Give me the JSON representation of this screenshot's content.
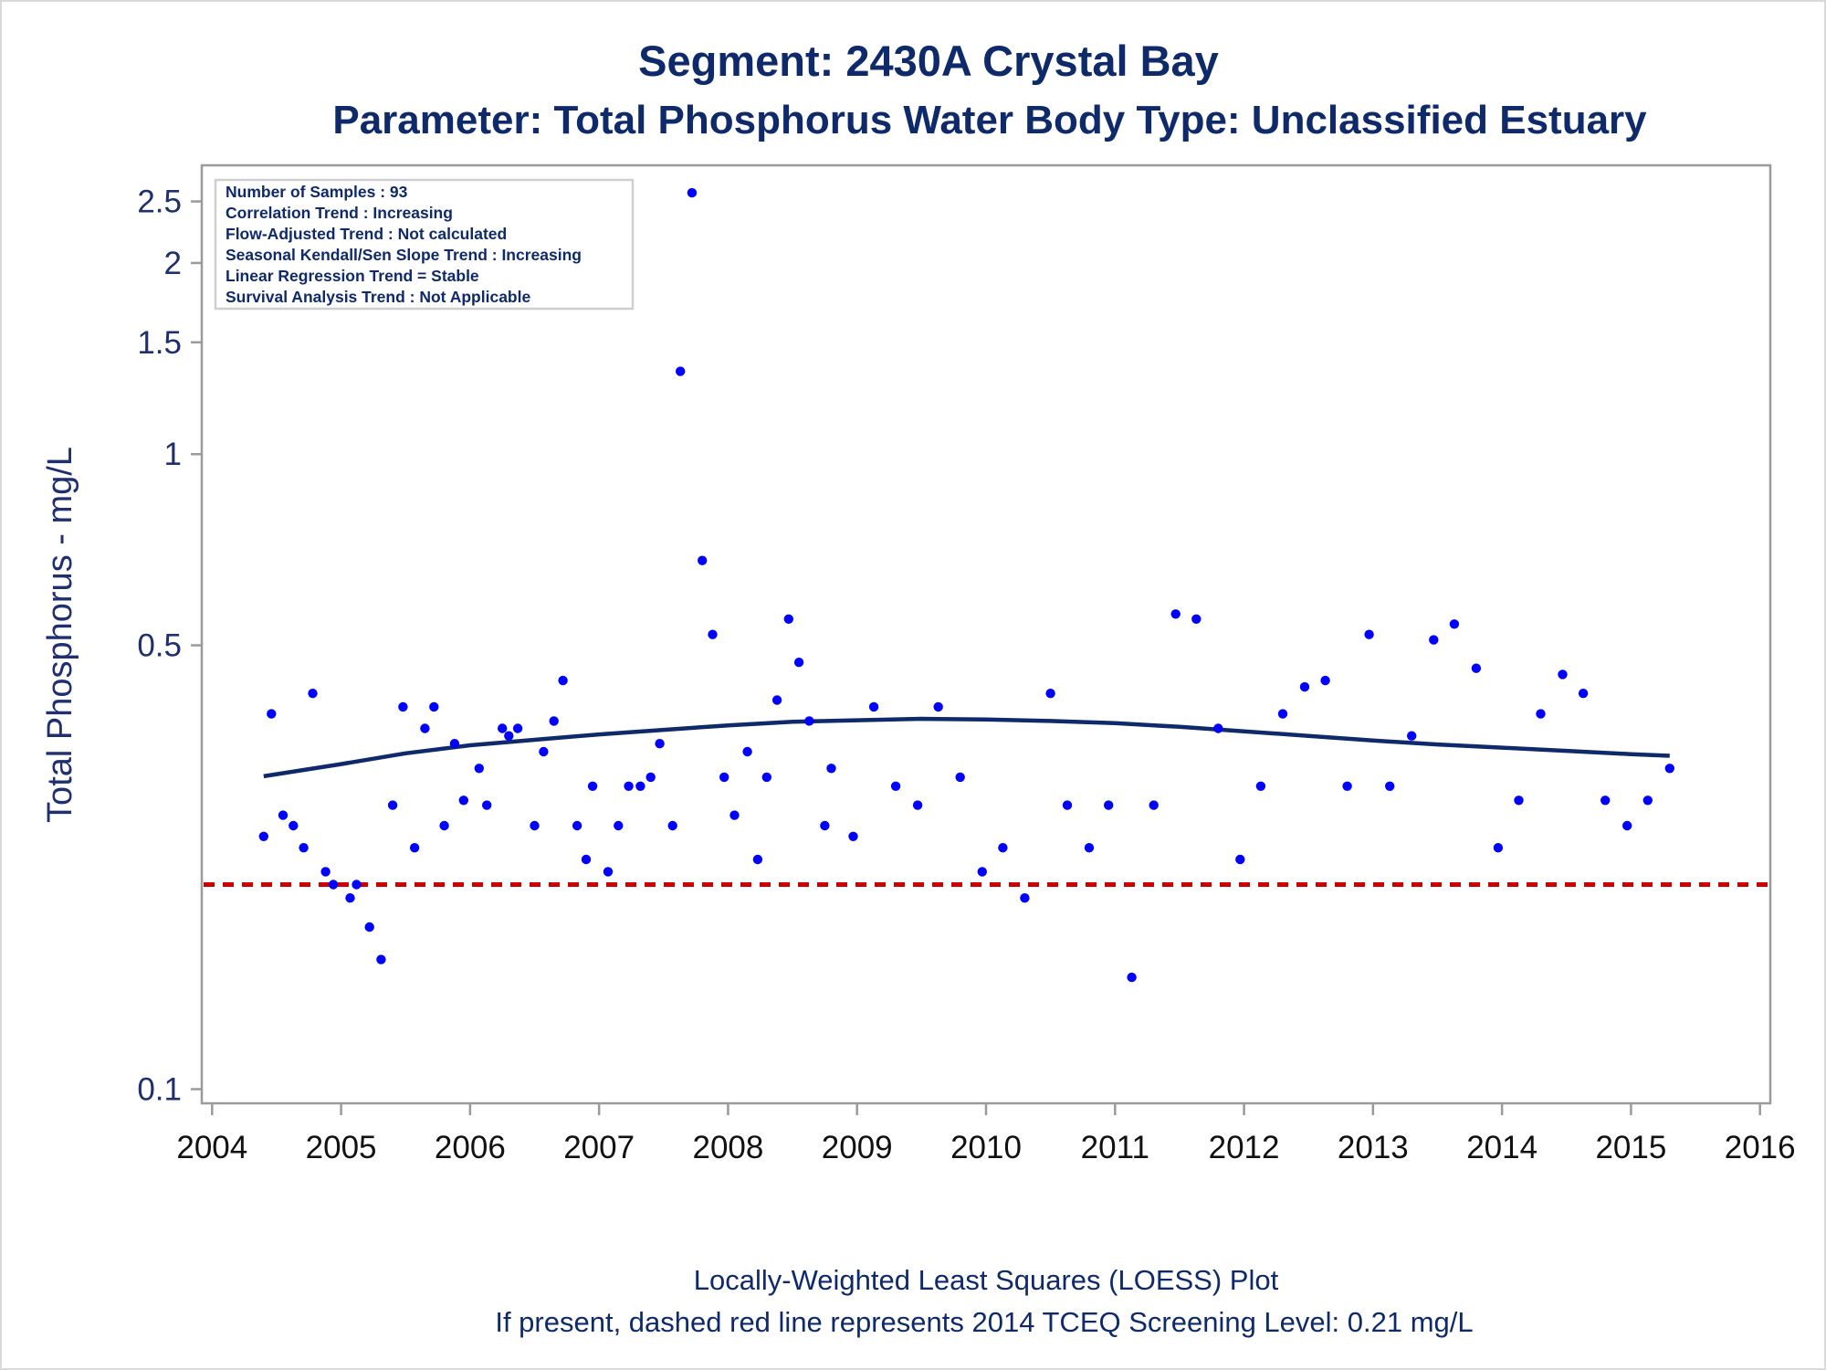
{
  "chart_data": {
    "type": "scatter",
    "title": "Segment: 2430A  Crystal Bay",
    "subtitle": "Parameter: Total Phosphorus   Water Body Type: Unclassified Estuary",
    "ylabel": "Total Phosphorus - mg/L",
    "xlabel": "",
    "y_scale": "log",
    "ylim": [
      0.095,
      2.85
    ],
    "xlim": [
      2003.92,
      2016.08
    ],
    "y_ticks": [
      0.1,
      0.5,
      1,
      1.5,
      2,
      2.5
    ],
    "y_tick_labels": [
      "0.1",
      "0.5",
      "1",
      "1.5",
      "2",
      "2.5"
    ],
    "x_ticks": [
      2004,
      2005,
      2006,
      2007,
      2008,
      2009,
      2010,
      2011,
      2012,
      2013,
      2014,
      2015,
      2016
    ],
    "x_tick_labels": [
      "2004",
      "2005",
      "2006",
      "2007",
      "2008",
      "2009",
      "2010",
      "2011",
      "2012",
      "2013",
      "2014",
      "2015",
      "2016"
    ],
    "grid": false,
    "legend": "none",
    "colors": {
      "points": "#0000ff",
      "loess": "#0f2a6b",
      "screening": "#cc0000",
      "text": "#0f2a6b"
    },
    "stats_box": [
      "Number of Samples : 93",
      "Correlation Trend : Increasing",
      "Flow-Adjusted Trend : Not calculated",
      "Seasonal Kendall/Sen Slope Trend : Increasing",
      "Linear Regression Trend = Stable",
      "Survival Analysis Trend : Not Applicable"
    ],
    "screening_level": 0.21,
    "points": [
      {
        "x": 2004.4,
        "y": 0.25
      },
      {
        "x": 2004.46,
        "y": 0.39
      },
      {
        "x": 2004.55,
        "y": 0.27
      },
      {
        "x": 2004.63,
        "y": 0.26
      },
      {
        "x": 2004.71,
        "y": 0.24
      },
      {
        "x": 2004.78,
        "y": 0.42
      },
      {
        "x": 2004.88,
        "y": 0.22
      },
      {
        "x": 2004.94,
        "y": 0.21
      },
      {
        "x": 2005.07,
        "y": 0.2
      },
      {
        "x": 2005.12,
        "y": 0.21
      },
      {
        "x": 2005.22,
        "y": 0.18
      },
      {
        "x": 2005.31,
        "y": 0.16
      },
      {
        "x": 2005.4,
        "y": 0.28
      },
      {
        "x": 2005.48,
        "y": 0.4
      },
      {
        "x": 2005.57,
        "y": 0.24
      },
      {
        "x": 2005.65,
        "y": 0.37
      },
      {
        "x": 2005.72,
        "y": 0.4
      },
      {
        "x": 2005.8,
        "y": 0.26
      },
      {
        "x": 2005.88,
        "y": 0.35
      },
      {
        "x": 2005.95,
        "y": 0.285
      },
      {
        "x": 2006.07,
        "y": 0.32
      },
      {
        "x": 2006.13,
        "y": 0.28
      },
      {
        "x": 2006.25,
        "y": 0.37
      },
      {
        "x": 2006.3,
        "y": 0.36
      },
      {
        "x": 2006.37,
        "y": 0.37
      },
      {
        "x": 2006.5,
        "y": 0.26
      },
      {
        "x": 2006.57,
        "y": 0.34
      },
      {
        "x": 2006.65,
        "y": 0.38
      },
      {
        "x": 2006.72,
        "y": 0.44
      },
      {
        "x": 2006.83,
        "y": 0.26
      },
      {
        "x": 2006.9,
        "y": 0.23
      },
      {
        "x": 2006.95,
        "y": 0.3
      },
      {
        "x": 2007.07,
        "y": 0.22
      },
      {
        "x": 2007.15,
        "y": 0.26
      },
      {
        "x": 2007.23,
        "y": 0.3
      },
      {
        "x": 2007.32,
        "y": 0.3
      },
      {
        "x": 2007.4,
        "y": 0.31
      },
      {
        "x": 2007.47,
        "y": 0.35
      },
      {
        "x": 2007.57,
        "y": 0.26
      },
      {
        "x": 2007.63,
        "y": 1.35
      },
      {
        "x": 2007.72,
        "y": 2.58
      },
      {
        "x": 2007.8,
        "y": 0.68
      },
      {
        "x": 2007.88,
        "y": 0.52
      },
      {
        "x": 2007.97,
        "y": 0.31
      },
      {
        "x": 2008.05,
        "y": 0.27
      },
      {
        "x": 2008.15,
        "y": 0.34
      },
      {
        "x": 2008.23,
        "y": 0.23
      },
      {
        "x": 2008.3,
        "y": 0.31
      },
      {
        "x": 2008.38,
        "y": 0.41
      },
      {
        "x": 2008.47,
        "y": 0.55
      },
      {
        "x": 2008.55,
        "y": 0.47
      },
      {
        "x": 2008.63,
        "y": 0.38
      },
      {
        "x": 2008.75,
        "y": 0.26
      },
      {
        "x": 2008.8,
        "y": 0.32
      },
      {
        "x": 2008.97,
        "y": 0.25
      },
      {
        "x": 2009.13,
        "y": 0.4
      },
      {
        "x": 2009.3,
        "y": 0.3
      },
      {
        "x": 2009.47,
        "y": 0.28
      },
      {
        "x": 2009.63,
        "y": 0.4
      },
      {
        "x": 2009.8,
        "y": 0.31
      },
      {
        "x": 2009.97,
        "y": 0.22
      },
      {
        "x": 2010.13,
        "y": 0.24
      },
      {
        "x": 2010.3,
        "y": 0.2
      },
      {
        "x": 2010.5,
        "y": 0.42
      },
      {
        "x": 2010.63,
        "y": 0.28
      },
      {
        "x": 2010.8,
        "y": 0.24
      },
      {
        "x": 2010.95,
        "y": 0.28
      },
      {
        "x": 2011.13,
        "y": 0.15
      },
      {
        "x": 2011.3,
        "y": 0.28
      },
      {
        "x": 2011.47,
        "y": 0.56
      },
      {
        "x": 2011.63,
        "y": 0.55
      },
      {
        "x": 2011.8,
        "y": 0.37
      },
      {
        "x": 2011.97,
        "y": 0.23
      },
      {
        "x": 2012.13,
        "y": 0.3
      },
      {
        "x": 2012.3,
        "y": 0.39
      },
      {
        "x": 2012.47,
        "y": 0.43
      },
      {
        "x": 2012.63,
        "y": 0.44
      },
      {
        "x": 2012.8,
        "y": 0.3
      },
      {
        "x": 2012.97,
        "y": 0.52
      },
      {
        "x": 2013.13,
        "y": 0.3
      },
      {
        "x": 2013.3,
        "y": 0.36
      },
      {
        "x": 2013.47,
        "y": 0.51
      },
      {
        "x": 2013.63,
        "y": 0.54
      },
      {
        "x": 2013.8,
        "y": 0.46
      },
      {
        "x": 2013.97,
        "y": 0.24
      },
      {
        "x": 2014.13,
        "y": 0.285
      },
      {
        "x": 2014.3,
        "y": 0.39
      },
      {
        "x": 2014.47,
        "y": 0.45
      },
      {
        "x": 2014.63,
        "y": 0.42
      },
      {
        "x": 2014.8,
        "y": 0.285
      },
      {
        "x": 2014.97,
        "y": 0.26
      },
      {
        "x": 2015.13,
        "y": 0.285
      },
      {
        "x": 2015.3,
        "y": 0.32
      }
    ],
    "loess": [
      {
        "x": 2004.4,
        "y": 0.311
      },
      {
        "x": 2005.0,
        "y": 0.325
      },
      {
        "x": 2005.5,
        "y": 0.338
      },
      {
        "x": 2006.0,
        "y": 0.348
      },
      {
        "x": 2006.5,
        "y": 0.355
      },
      {
        "x": 2007.0,
        "y": 0.362
      },
      {
        "x": 2007.5,
        "y": 0.368
      },
      {
        "x": 2008.0,
        "y": 0.374
      },
      {
        "x": 2008.5,
        "y": 0.379
      },
      {
        "x": 2009.0,
        "y": 0.381
      },
      {
        "x": 2009.5,
        "y": 0.383
      },
      {
        "x": 2010.0,
        "y": 0.382
      },
      {
        "x": 2010.5,
        "y": 0.38
      },
      {
        "x": 2011.0,
        "y": 0.377
      },
      {
        "x": 2011.5,
        "y": 0.372
      },
      {
        "x": 2012.0,
        "y": 0.366
      },
      {
        "x": 2012.5,
        "y": 0.36
      },
      {
        "x": 2013.0,
        "y": 0.354
      },
      {
        "x": 2013.5,
        "y": 0.349
      },
      {
        "x": 2014.0,
        "y": 0.345
      },
      {
        "x": 2014.5,
        "y": 0.341
      },
      {
        "x": 2015.0,
        "y": 0.337
      },
      {
        "x": 2015.3,
        "y": 0.335
      }
    ]
  },
  "footer": {
    "line1": "Locally-Weighted Least Squares (LOESS) Plot",
    "line2": "If present, dashed red line represents 2014 TCEQ Screening Level: 0.21 mg/L"
  }
}
